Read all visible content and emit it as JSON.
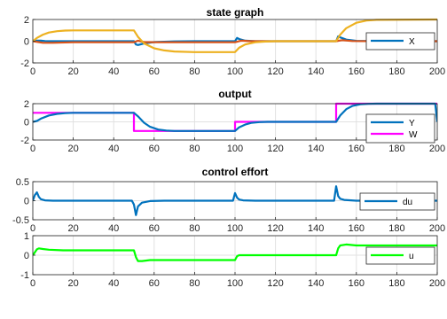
{
  "chart_data": [
    {
      "type": "line",
      "title": "state graph",
      "xlim": [
        0,
        200
      ],
      "ylim": [
        -2,
        2
      ],
      "xticks": [
        0,
        20,
        40,
        60,
        80,
        100,
        120,
        140,
        160,
        180,
        200
      ],
      "yticks": [
        -2,
        0,
        2
      ],
      "xtick_labels": [
        "0",
        "20",
        "40",
        "60",
        "80",
        "100",
        "120",
        "140",
        "160",
        "180",
        "200"
      ],
      "ytick_labels": [
        "-2",
        "0",
        "2"
      ],
      "legend": {
        "entries": [
          "X"
        ],
        "position": "right"
      },
      "series": [
        {
          "name": "X",
          "color": "#0072BD",
          "legend": true,
          "x": [
            0,
            2,
            4,
            6,
            10,
            15,
            20,
            25,
            50,
            51,
            52,
            55,
            60,
            70,
            80,
            90,
            100,
            101,
            102,
            105,
            110,
            120,
            130,
            150,
            151,
            152,
            155,
            160,
            170,
            180,
            200
          ],
          "y": [
            0,
            0.05,
            0.05,
            0.02,
            0,
            0,
            0,
            0,
            0,
            -0.3,
            -0.35,
            -0.2,
            -0.08,
            -0.02,
            0,
            0,
            0,
            0.3,
            0.2,
            0.05,
            0,
            0,
            0,
            0,
            0.45,
            0.35,
            0.15,
            0.03,
            0,
            0,
            0
          ]
        },
        {
          "name": "",
          "color": "#D95319",
          "legend": false,
          "x": [
            0,
            5,
            10,
            20,
            40,
            50,
            52,
            55,
            60,
            80,
            100,
            103,
            108,
            120,
            150,
            153,
            158,
            170,
            200
          ],
          "y": [
            0,
            -0.15,
            -0.15,
            -0.1,
            -0.1,
            -0.1,
            0.05,
            -0.08,
            -0.1,
            -0.1,
            -0.1,
            0.05,
            0,
            0,
            0,
            0.1,
            0.02,
            0,
            0
          ]
        },
        {
          "name": "",
          "color": "#EDB120",
          "legend": false,
          "x": [
            0,
            2,
            5,
            8,
            12,
            16,
            20,
            30,
            50,
            52,
            55,
            60,
            65,
            70,
            80,
            90,
            100,
            102,
            105,
            110,
            115,
            120,
            130,
            140,
            150,
            152,
            155,
            160,
            165,
            170,
            200
          ],
          "y": [
            0,
            0.3,
            0.6,
            0.8,
            0.92,
            0.98,
            1,
            1,
            1,
            0.4,
            -0.2,
            -0.65,
            -0.85,
            -0.95,
            -1,
            -1,
            -1,
            -0.6,
            -0.3,
            -0.1,
            -0.03,
            0,
            0,
            0,
            0,
            0.6,
            1.2,
            1.7,
            1.9,
            1.97,
            2
          ]
        }
      ]
    },
    {
      "type": "line",
      "title": "output",
      "xlim": [
        0,
        200
      ],
      "ylim": [
        -2,
        2
      ],
      "xticks": [
        0,
        20,
        40,
        60,
        80,
        100,
        120,
        140,
        160,
        180,
        200
      ],
      "yticks": [
        -2,
        0,
        2
      ],
      "xtick_labels": [
        "0",
        "20",
        "40",
        "60",
        "80",
        "100",
        "120",
        "140",
        "160",
        "180",
        "200"
      ],
      "ytick_labels": [
        "-2",
        "0",
        "2"
      ],
      "legend": {
        "entries": [
          "Y",
          "W"
        ],
        "position": "right"
      },
      "series": [
        {
          "name": "W",
          "color": "#FF00FF",
          "legend": true,
          "x": [
            0,
            50,
            50,
            100,
            100,
            150,
            150,
            200
          ],
          "y": [
            1,
            1,
            -1,
            -1,
            0,
            0,
            2,
            2
          ]
        },
        {
          "name": "Y",
          "color": "#0072BD",
          "legend": true,
          "x": [
            0,
            2,
            4,
            8,
            12,
            16,
            20,
            30,
            50,
            52,
            55,
            58,
            62,
            66,
            70,
            80,
            100,
            102,
            105,
            108,
            112,
            116,
            120,
            150,
            152,
            155,
            158,
            162,
            166,
            170,
            199,
            200
          ],
          "y": [
            0,
            0.1,
            0.35,
            0.7,
            0.88,
            0.96,
            1,
            1,
            1,
            0.6,
            -0.1,
            -0.55,
            -0.85,
            -0.96,
            -1,
            -1,
            -1,
            -0.6,
            -0.3,
            -0.12,
            -0.03,
            0,
            0,
            0,
            0.7,
            1.4,
            1.75,
            1.93,
            1.98,
            2,
            2,
            0
          ]
        }
      ]
    },
    {
      "type": "line",
      "title": "control effort",
      "xlim": [
        0,
        200
      ],
      "ylim": [
        -0.5,
        0.5
      ],
      "xticks": [
        0,
        20,
        40,
        60,
        80,
        100,
        120,
        140,
        160,
        180,
        200
      ],
      "yticks": [
        -0.5,
        0,
        0.5
      ],
      "xtick_labels": [
        "0",
        "20",
        "40",
        "60",
        "80",
        "100",
        "120",
        "140",
        "160",
        "180",
        "200"
      ],
      "ytick_labels": [
        "-0.5",
        "0",
        "0.5"
      ],
      "legend": {
        "entries": [
          "du"
        ],
        "position": "right"
      },
      "series": [
        {
          "name": "du",
          "color": "#0072BD",
          "legend": true,
          "x": [
            0,
            1,
            2,
            3,
            4,
            6,
            10,
            20,
            49,
            50,
            51,
            52,
            54,
            58,
            65,
            99,
            100,
            101,
            102,
            104,
            110,
            149,
            150,
            151,
            152,
            154,
            160,
            200
          ],
          "y": [
            0,
            0.15,
            0.22,
            0.1,
            0.04,
            0.01,
            0,
            0,
            0,
            -0.1,
            -0.38,
            -0.15,
            -0.05,
            -0.01,
            0,
            0,
            0.2,
            0.08,
            0.03,
            0.01,
            0,
            0,
            0.38,
            0.12,
            0.05,
            0.02,
            0,
            0
          ]
        }
      ]
    },
    {
      "type": "line",
      "title": "",
      "xlim": [
        0,
        200
      ],
      "ylim": [
        -1,
        1
      ],
      "xticks": [
        0,
        20,
        40,
        60,
        80,
        100,
        120,
        140,
        160,
        180,
        200
      ],
      "yticks": [
        -1,
        0,
        1
      ],
      "xtick_labels": [
        "0",
        "20",
        "40",
        "60",
        "80",
        "100",
        "120",
        "140",
        "160",
        "180",
        "200"
      ],
      "ytick_labels": [
        "-1",
        "0",
        "1"
      ],
      "legend": {
        "entries": [
          "u"
        ],
        "position": "right"
      },
      "series": [
        {
          "name": "u",
          "color": "#00FF00",
          "legend": true,
          "x": [
            0,
            1,
            2,
            3,
            5,
            8,
            15,
            50,
            51,
            52,
            54,
            58,
            70,
            100,
            101,
            102,
            104,
            110,
            150,
            151,
            152,
            155,
            160,
            200
          ],
          "y": [
            0,
            0.15,
            0.3,
            0.35,
            0.32,
            0.28,
            0.25,
            0.25,
            -0.1,
            -0.3,
            -0.3,
            -0.25,
            -0.25,
            -0.25,
            -0.05,
            0,
            0,
            0,
            0,
            0.35,
            0.5,
            0.55,
            0.5,
            0.5
          ]
        }
      ]
    }
  ]
}
